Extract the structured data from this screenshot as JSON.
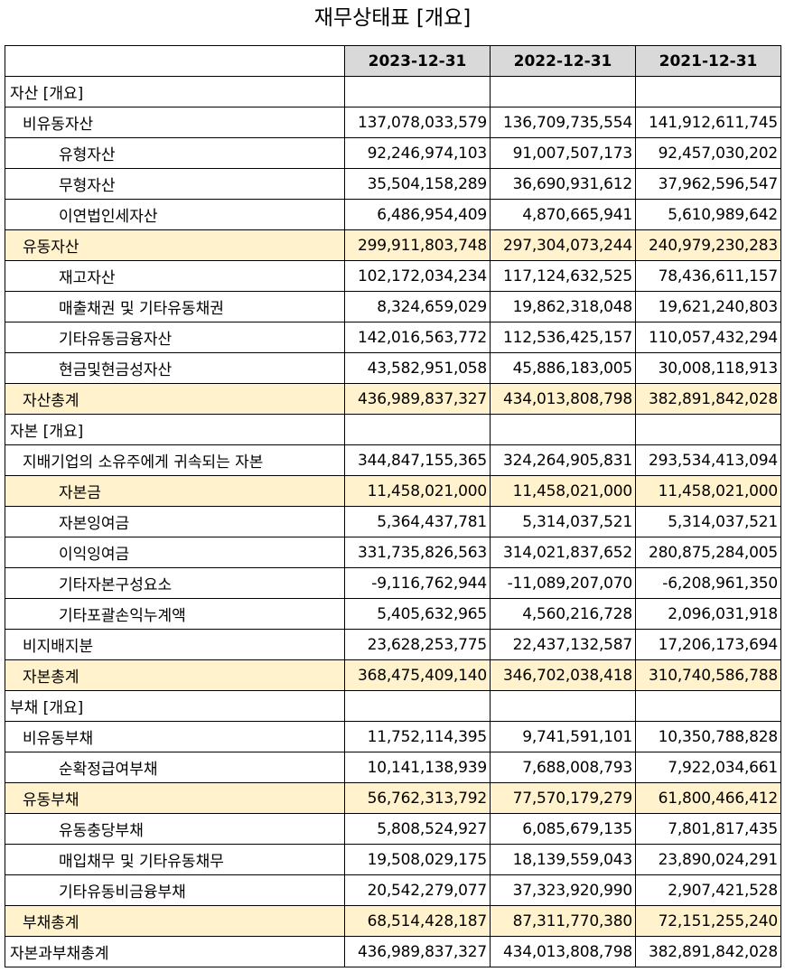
{
  "title": "재무상태표 [개요]",
  "header": {
    "col1": "2023-12-31",
    "col2": "2022-12-31",
    "col3": "2021-12-31"
  },
  "colors": {
    "header_bg": "#d9d9d9",
    "highlight_bg": "#fff2cc"
  },
  "rows": [
    {
      "label": "자산 [개요]",
      "indent": 0,
      "highlight": false,
      "v1": "",
      "v2": "",
      "v3": ""
    },
    {
      "label": "비유동자산",
      "indent": 1,
      "highlight": false,
      "v1": "137,078,033,579",
      "v2": "136,709,735,554",
      "v3": "141,912,611,745"
    },
    {
      "label": "유형자산",
      "indent": 2,
      "highlight": false,
      "v1": "92,246,974,103",
      "v2": "91,007,507,173",
      "v3": "92,457,030,202"
    },
    {
      "label": "무형자산",
      "indent": 2,
      "highlight": false,
      "v1": "35,504,158,289",
      "v2": "36,690,931,612",
      "v3": "37,962,596,547"
    },
    {
      "label": "이연법인세자산",
      "indent": 2,
      "highlight": false,
      "v1": "6,486,954,409",
      "v2": "4,870,665,941",
      "v3": "5,610,989,642"
    },
    {
      "label": "유동자산",
      "indent": 1,
      "highlight": true,
      "v1": "299,911,803,748",
      "v2": "297,304,073,244",
      "v3": "240,979,230,283"
    },
    {
      "label": "재고자산",
      "indent": 2,
      "highlight": false,
      "v1": "102,172,034,234",
      "v2": "117,124,632,525",
      "v3": "78,436,611,157"
    },
    {
      "label": "매출채권 및 기타유동채권",
      "indent": 2,
      "highlight": false,
      "v1": "8,324,659,029",
      "v2": "19,862,318,048",
      "v3": "19,621,240,803"
    },
    {
      "label": "기타유동금융자산",
      "indent": 2,
      "highlight": false,
      "v1": "142,016,563,772",
      "v2": "112,536,425,157",
      "v3": "110,057,432,294"
    },
    {
      "label": "현금및현금성자산",
      "indent": 2,
      "highlight": false,
      "v1": "43,582,951,058",
      "v2": "45,886,183,005",
      "v3": "30,008,118,913"
    },
    {
      "label": "자산총계",
      "indent": 1,
      "highlight": true,
      "v1": "436,989,837,327",
      "v2": "434,013,808,798",
      "v3": "382,891,842,028"
    },
    {
      "label": "자본 [개요]",
      "indent": 0,
      "highlight": false,
      "v1": "",
      "v2": "",
      "v3": ""
    },
    {
      "label": "지배기업의 소유주에게 귀속되는 자본",
      "indent": 1,
      "highlight": false,
      "v1": "344,847,155,365",
      "v2": "324,264,905,831",
      "v3": "293,534,413,094"
    },
    {
      "label": "자본금",
      "indent": 2,
      "highlight": true,
      "v1": "11,458,021,000",
      "v2": "11,458,021,000",
      "v3": "11,458,021,000"
    },
    {
      "label": "자본잉여금",
      "indent": 2,
      "highlight": false,
      "v1": "5,364,437,781",
      "v2": "5,314,037,521",
      "v3": "5,314,037,521"
    },
    {
      "label": "이익잉여금",
      "indent": 2,
      "highlight": false,
      "v1": "331,735,826,563",
      "v2": "314,021,837,652",
      "v3": "280,875,284,005"
    },
    {
      "label": "기타자본구성요소",
      "indent": 2,
      "highlight": false,
      "v1": "-9,116,762,944",
      "v2": "-11,089,207,070",
      "v3": "-6,208,961,350"
    },
    {
      "label": "기타포괄손익누계액",
      "indent": 2,
      "highlight": false,
      "v1": "5,405,632,965",
      "v2": "4,560,216,728",
      "v3": "2,096,031,918"
    },
    {
      "label": "비지배지분",
      "indent": 1,
      "highlight": false,
      "v1": "23,628,253,775",
      "v2": "22,437,132,587",
      "v3": "17,206,173,694"
    },
    {
      "label": "자본총계",
      "indent": 1,
      "highlight": true,
      "v1": "368,475,409,140",
      "v2": "346,702,038,418",
      "v3": "310,740,586,788"
    },
    {
      "label": "부채 [개요]",
      "indent": 0,
      "highlight": false,
      "v1": "",
      "v2": "",
      "v3": ""
    },
    {
      "label": "비유동부채",
      "indent": 1,
      "highlight": false,
      "v1": "11,752,114,395",
      "v2": "9,741,591,101",
      "v3": "10,350,788,828"
    },
    {
      "label": "순확정급여부채",
      "indent": 2,
      "highlight": false,
      "v1": "10,141,138,939",
      "v2": "7,688,008,793",
      "v3": "7,922,034,661"
    },
    {
      "label": "유동부채",
      "indent": 1,
      "highlight": true,
      "v1": "56,762,313,792",
      "v2": "77,570,179,279",
      "v3": "61,800,466,412"
    },
    {
      "label": "유동충당부채",
      "indent": 2,
      "highlight": false,
      "v1": "5,808,524,927",
      "v2": "6,085,679,135",
      "v3": "7,801,817,435"
    },
    {
      "label": "매입채무 및 기타유동채무",
      "indent": 2,
      "highlight": false,
      "v1": "19,508,029,175",
      "v2": "18,139,559,043",
      "v3": "23,890,024,291"
    },
    {
      "label": "기타유동비금융부채",
      "indent": 2,
      "highlight": false,
      "v1": "20,542,279,077",
      "v2": "37,323,920,990",
      "v3": "2,907,421,528"
    },
    {
      "label": "부채총계",
      "indent": 1,
      "highlight": true,
      "v1": "68,514,428,187",
      "v2": "87,311,770,380",
      "v3": "72,151,255,240"
    },
    {
      "label": "자본과부채총계",
      "indent": 0,
      "highlight": false,
      "v1": "436,989,837,327",
      "v2": "434,013,808,798",
      "v3": "382,891,842,028"
    }
  ]
}
